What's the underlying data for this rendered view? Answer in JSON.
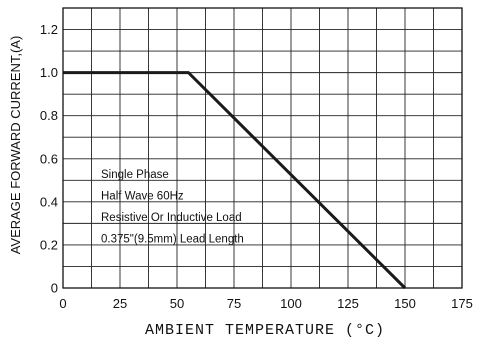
{
  "chart_data": {
    "type": "line",
    "title": "",
    "xlabel": "AMBIENT TEMPERATURE (°C)",
    "ylabel": "AVERAGE FORWARD CURRENT,(A)",
    "xlim": [
      0,
      175
    ],
    "ylim": [
      0,
      1.3
    ],
    "x_ticks": [
      0,
      25,
      50,
      75,
      100,
      125,
      150,
      175
    ],
    "y_ticks": [
      0,
      0.2,
      0.4,
      0.6,
      0.8,
      1.0,
      1.2
    ],
    "x_tick_labels": [
      "0",
      "25",
      "50",
      "75",
      "100",
      "125",
      "150",
      "175"
    ],
    "y_tick_labels": [
      "0",
      "0.2",
      "0.4",
      "0.6",
      "0.8",
      "1.0",
      "1.2"
    ],
    "grid": true,
    "grid_x_step": 12.5,
    "grid_y_step": 0.1,
    "series": [
      {
        "x": [
          0,
          55,
          150
        ],
        "y": [
          1.0,
          1.0,
          0.0
        ]
      }
    ],
    "annotations": [
      "Single Phase",
      "Half Wave 60Hz",
      "Resistive Or Inductive Load",
      "0.375\"(9.5mm) Lead Length"
    ]
  },
  "colors": {
    "line": "#1a1a1a",
    "grid": "#222222",
    "background": "#ffffff"
  }
}
